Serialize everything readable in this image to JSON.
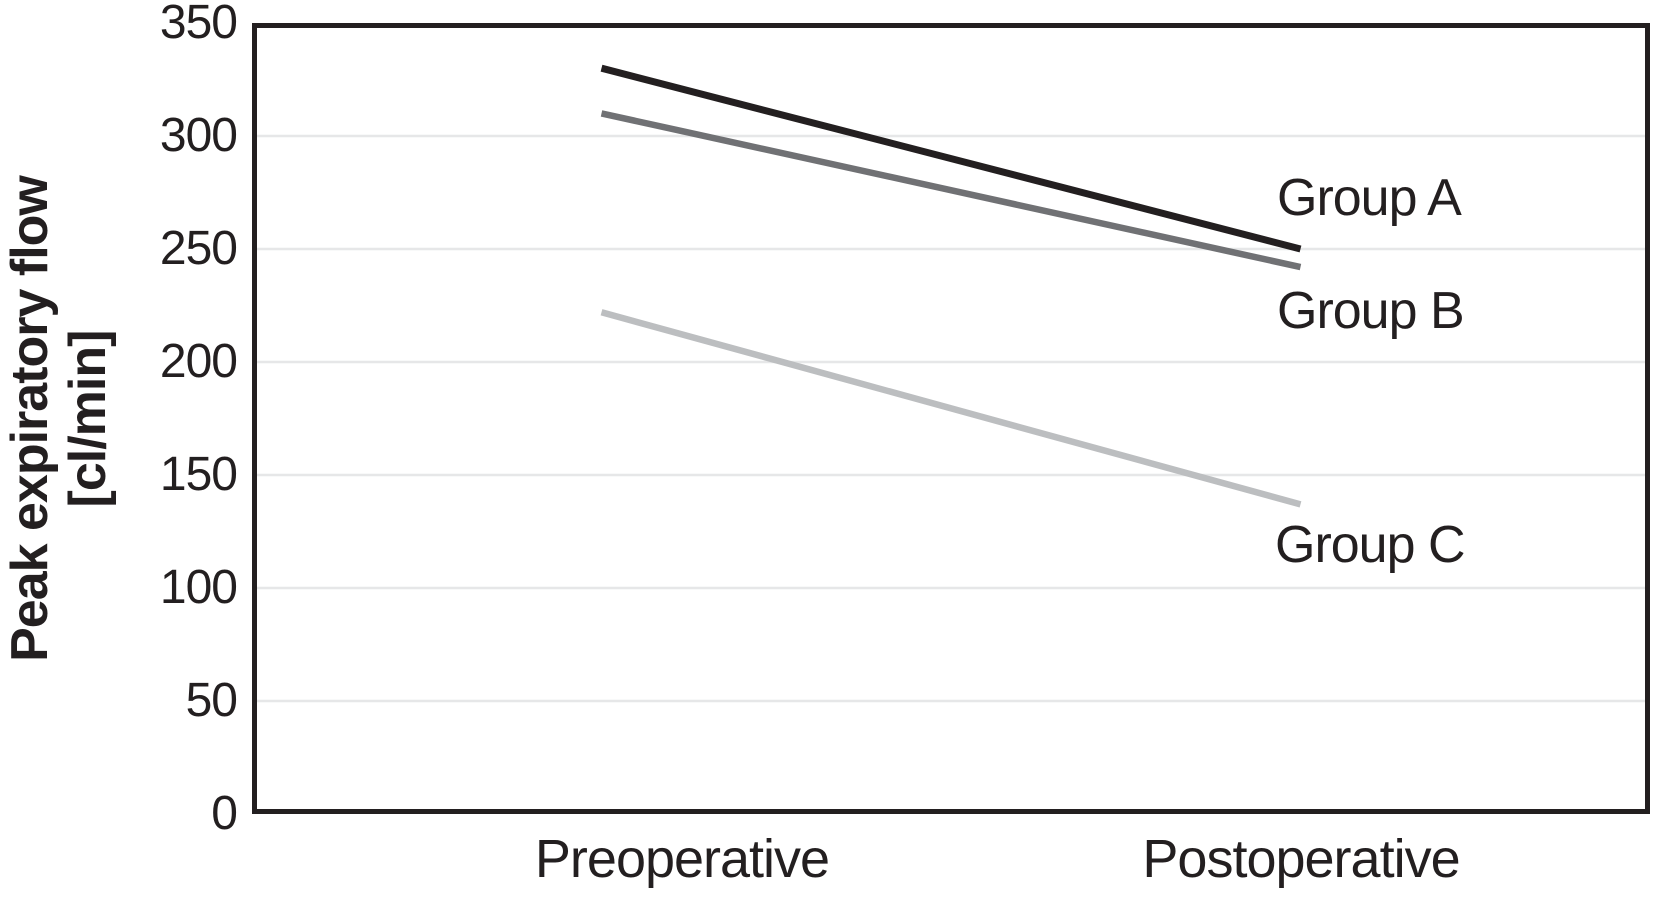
{
  "chart_data": {
    "type": "line",
    "title": "",
    "categories": [
      "Preoperative",
      "Postoperative"
    ],
    "series": [
      {
        "name": "Group A",
        "values": [
          330,
          250
        ],
        "color": "#231f20",
        "stroke_width": 7
      },
      {
        "name": "Group B",
        "values": [
          310,
          242
        ],
        "color": "#707174",
        "stroke_width": 6.5
      },
      {
        "name": "Group C",
        "values": [
          222,
          137
        ],
        "color": "#bcbec0",
        "stroke_width": 6.5
      }
    ],
    "xlabel": "",
    "ylabel": "Peak expiratory flow [cl/min]",
    "ylabel_lines": [
      "Peak expiratory flow",
      "[cl/min]"
    ],
    "ylim": [
      0,
      350
    ],
    "yticks": [
      0,
      50,
      100,
      150,
      200,
      250,
      300,
      350
    ],
    "grid": "horizontal",
    "legend_position": "end-of-line-labels",
    "colors": {
      "frame": "#231f20",
      "gridline": "#e6e7e8",
      "text": "#231f20",
      "background": "#ffffff"
    }
  }
}
